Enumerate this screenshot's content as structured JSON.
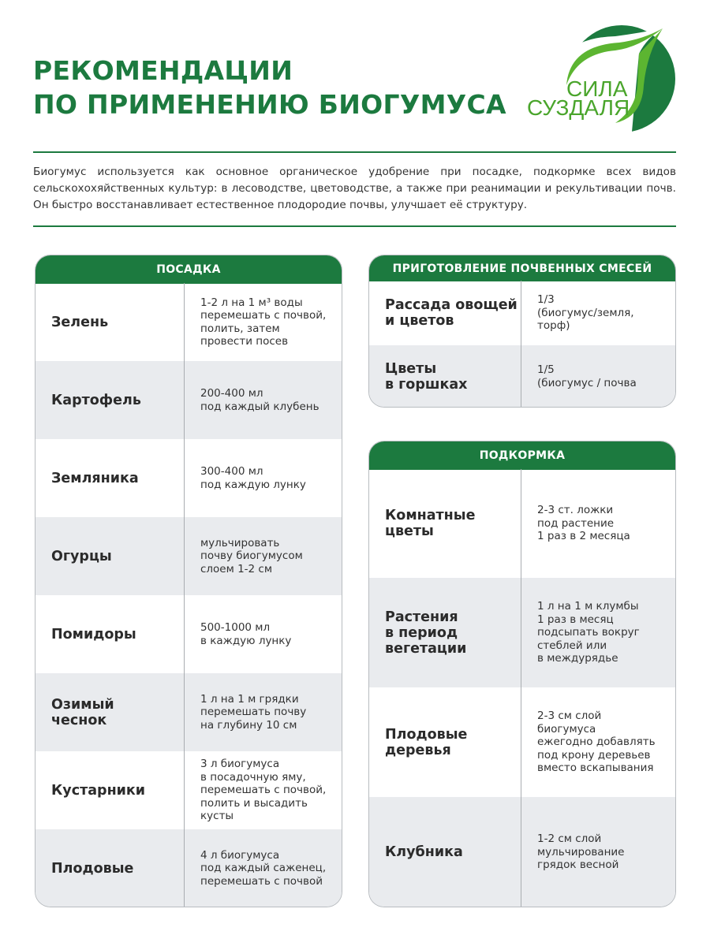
{
  "header": {
    "title_line1": "РЕКОМЕНДАЦИИ",
    "title_line2": "ПО ПРИМЕНЕНИЮ БИОГУМУСА",
    "logo_text": "СИЛА СУЗДАЛЯ",
    "brand_color": "#1c7a3f"
  },
  "intro": "Биогумус используется как основное органическое удобрение при посадке, подкормке всех видов сельскохохяйственных культур: в лесоводстве, цветоводстве, а также при реанимации и рекультивации почв. Он быстро восстанавливает естественное плодородие почвы, улучшает её структуру.",
  "planting": {
    "title": "ПОСАДКА",
    "rows": [
      {
        "crop": "Зелень",
        "dose": "1-2 л на 1 м³ воды\nперемешать с почвой,\nполить, затем\nпровести посев"
      },
      {
        "crop": "Картофель",
        "dose": "200-400 мл\nпод каждый клубень"
      },
      {
        "crop": "Земляника",
        "dose": "300-400 мл\nпод каждую лунку"
      },
      {
        "crop": "Огурцы",
        "dose": "мульчировать\nпочву биогумусом\nслоем 1-2 см"
      },
      {
        "crop": "Помидоры",
        "dose": "500-1000 мл\nв каждую лунку"
      },
      {
        "crop": "Озимый\nчеснок",
        "dose": "1 л на 1 м грядки\nперемешать почву\nна глубину 10 см"
      },
      {
        "crop": "Кустарники",
        "dose": "3 л биогумуса\nв посадочную яму,\nперемешать с почвой,\nполить и высадить\nкусты"
      },
      {
        "crop": "Плодовые",
        "dose": "4 л биогумуса\nпод каждый саженец,\nперемешать с почвой"
      }
    ]
  },
  "mixes": {
    "title": "ПРИГОТОВЛЕНИЕ ПОЧВЕННЫХ СМЕСЕЙ",
    "rows": [
      {
        "crop": "Рассада овощей\nи цветов",
        "dose": "1/3\n(биогумус/земля,\nторф)"
      },
      {
        "crop": "Цветы\nв горшках",
        "dose": "1/5\n(биогумус / почва"
      }
    ]
  },
  "feeding": {
    "title": "ПОДКОРМКА",
    "rows": [
      {
        "crop": "Комнатные\nцветы",
        "dose": "2-3 ст. ложки\nпод растение\n1 раз в 2 месяца"
      },
      {
        "crop": "Растения\nв период\nвегетации",
        "dose": "1 л на 1 м клумбы\n1 раз в месяц\nподсыпать вокруг\nстеблей или\nв междурядье"
      },
      {
        "crop": "Плодовые\nдеревья",
        "dose": "2-3 см слой\nбиогумуса\nежегодно добавлять\nпод крону деревьев\nвместо вскапывания"
      },
      {
        "crop": "Клубника",
        "dose": "1-2 см слой\nмульчирование\nгрядок весной"
      }
    ]
  }
}
